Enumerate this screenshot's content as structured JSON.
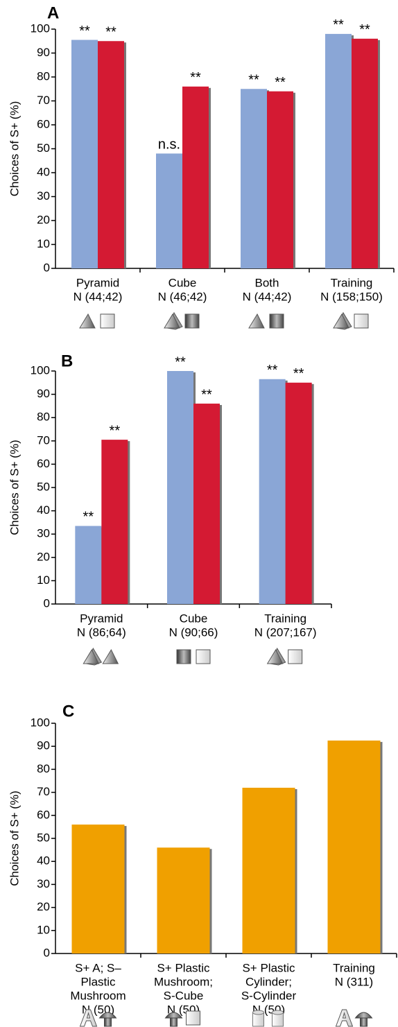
{
  "chart_data": [
    {
      "type": "bar",
      "panel_label": "A",
      "y_label": "Choices of S+ (%)",
      "categories": [
        "Pyramid",
        "Cube",
        "Both",
        "Training"
      ],
      "sample_sizes": [
        "N (44;42)",
        "N (46;42)",
        "N (44;42)",
        "N (158;150)"
      ],
      "series": [
        {
          "color": "#8aa6d6",
          "values": [
            95.5,
            48,
            75,
            98
          ],
          "significance": [
            "**",
            "n.s.",
            "**",
            "**"
          ]
        },
        {
          "color": "#d41a33",
          "values": [
            95,
            76,
            74,
            96
          ],
          "significance": [
            "**",
            "**",
            "**",
            "**"
          ]
        }
      ],
      "ylim": [
        0,
        100
      ],
      "yticks": [
        0,
        10,
        20,
        30,
        40,
        50,
        60,
        70,
        80,
        90,
        100
      ]
    },
    {
      "type": "bar",
      "panel_label": "B",
      "y_label": "Choices of S+ (%)",
      "categories": [
        "Pyramid",
        "Cube",
        "Training"
      ],
      "sample_sizes": [
        "N (86;64)",
        "N (90;66)",
        "N (207;167)"
      ],
      "series": [
        {
          "color": "#8aa6d6",
          "values": [
            33.5,
            100,
            96.5
          ],
          "significance": [
            "**",
            "**",
            "**"
          ]
        },
        {
          "color": "#d41a33",
          "values": [
            70.5,
            86,
            95
          ],
          "significance": [
            "**",
            "**",
            "**"
          ]
        }
      ],
      "ylim": [
        0,
        100
      ],
      "yticks": [
        0,
        10,
        20,
        30,
        40,
        50,
        60,
        70,
        80,
        90,
        100
      ]
    },
    {
      "type": "bar",
      "panel_label": "C",
      "y_label": "Choices of S+ (%)",
      "categories": [
        [
          "S+ A; S–",
          "Plastic",
          "Mushroom"
        ],
        [
          "S+ Plastic",
          "Mushroom;",
          "S-Cube"
        ],
        [
          "S+ Plastic",
          "Cylinder;",
          "S-Cylinder"
        ],
        [
          "Training"
        ]
      ],
      "sample_sizes": [
        "N (50)",
        "N (50)",
        "N (50)",
        "N (311)"
      ],
      "series": [
        {
          "color": "#f0a000",
          "values": [
            56,
            46,
            72,
            92.5
          ]
        }
      ],
      "ylim": [
        0,
        100
      ],
      "yticks": [
        0,
        10,
        20,
        30,
        40,
        50,
        60,
        70,
        80,
        90,
        100
      ]
    }
  ]
}
